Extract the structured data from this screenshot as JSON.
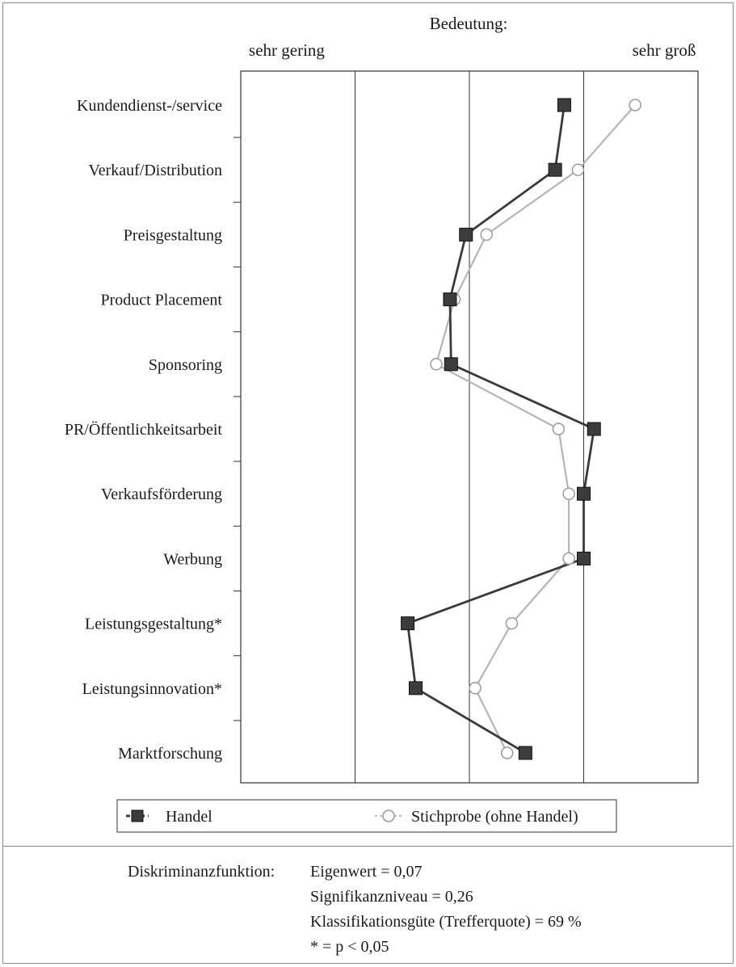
{
  "chart_data": {
    "type": "line",
    "orientation": "horizontal",
    "title": "Bedeutung:",
    "scale_low_label": "sehr gering",
    "scale_high_label": "sehr groß",
    "xlim": [
      1,
      5
    ],
    "grid": "vertical lines at 2, 3, 4",
    "categories": [
      "Kundendienst-/service",
      "Verkauf/Distribution",
      "Preisgestaltung",
      "Product Placement",
      "Sponsoring",
      "PR/Öffentlichkeitsarbeit",
      "Verkaufsförderung",
      "Werbung",
      "Leistungsgestaltung*",
      "Leistungsinnovation*",
      "Marktforschung"
    ],
    "series": [
      {
        "name": "Handel",
        "marker": "filled-square",
        "color": "#3c3c3c",
        "values": [
          3.83,
          3.75,
          2.97,
          2.83,
          2.84,
          4.09,
          4.0,
          4.0,
          2.46,
          2.53,
          3.49
        ]
      },
      {
        "name": "Stichprobe (ohne Handel)",
        "marker": "open-circle",
        "color": "#a8a8a8",
        "values": [
          4.45,
          3.95,
          3.15,
          2.87,
          2.71,
          3.78,
          3.87,
          3.87,
          3.37,
          3.05,
          3.33
        ]
      }
    ],
    "legend": {
      "placement": "bottom"
    }
  },
  "stats": {
    "label": "Diskriminanzfunktion:",
    "lines": [
      "Eigenwert = 0,07",
      "Signifikanzniveau = 0,26",
      "Klassifikationsgüte (Trefferquote) = 69 %",
      "* = p < 0,05"
    ]
  }
}
